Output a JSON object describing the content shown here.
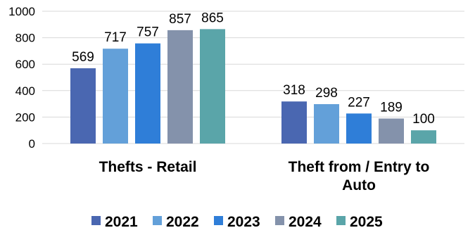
{
  "chart_data": {
    "type": "bar",
    "categories": [
      [
        "Thefts - Retail"
      ],
      [
        "Theft from / Entry to",
        "Auto"
      ]
    ],
    "series": [
      {
        "name": "2021",
        "color": "#4a67b1",
        "values": [
          569,
          318
        ]
      },
      {
        "name": "2022",
        "color": "#63a0d9",
        "values": [
          717,
          298
        ]
      },
      {
        "name": "2023",
        "color": "#2f7ed8",
        "values": [
          757,
          227
        ]
      },
      {
        "name": "2024",
        "color": "#8492ab",
        "values": [
          857,
          189
        ]
      },
      {
        "name": "2025",
        "color": "#5aa5a9",
        "values": [
          865,
          100
        ]
      }
    ],
    "yticks": [
      0,
      200,
      400,
      600,
      800,
      1000
    ],
    "ylim": [
      0,
      1000
    ],
    "grid": true,
    "legend": "bottom",
    "data_labels": true
  }
}
